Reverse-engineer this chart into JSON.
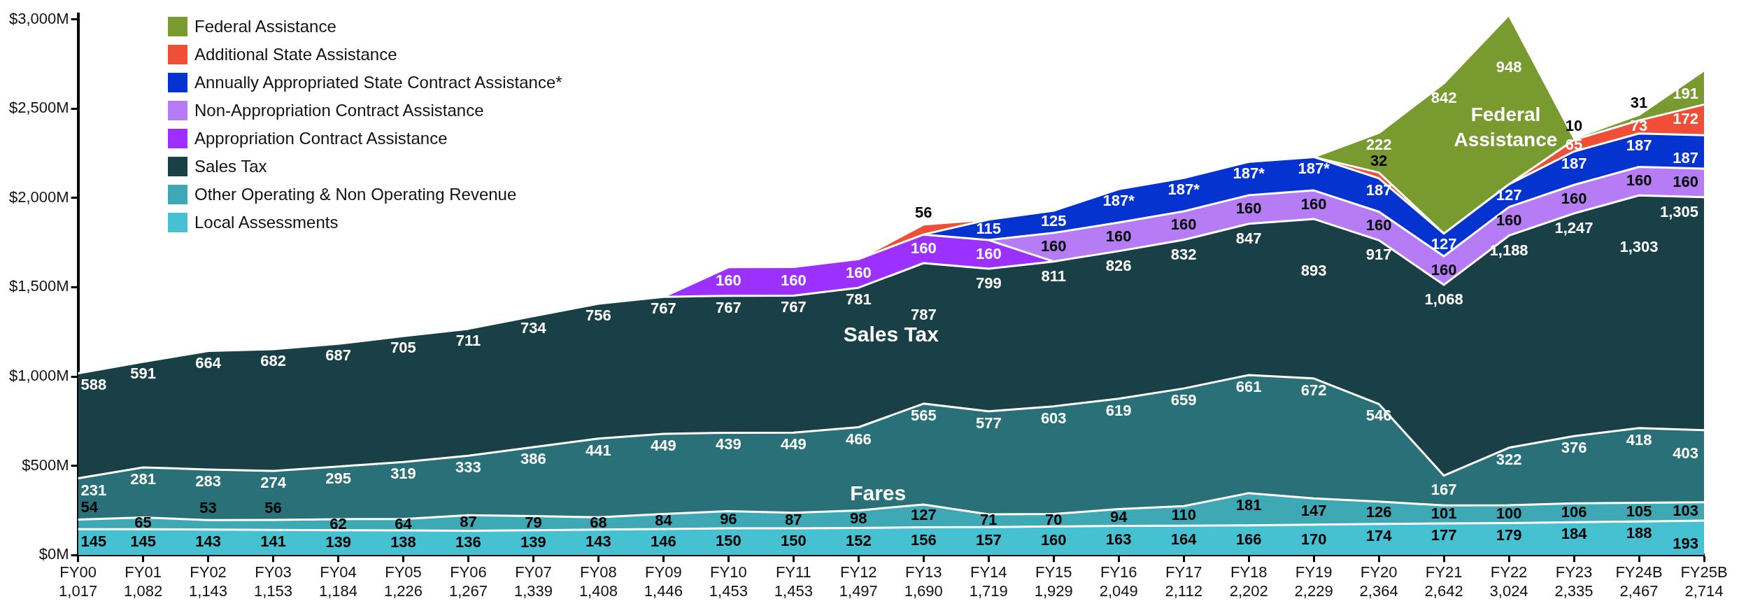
{
  "chart_data": {
    "type": "area",
    "stacked": true,
    "categories": [
      "FY00\n1,017",
      "FY01\n1,082",
      "FY02\n1,143",
      "FY03\n1,153",
      "FY04\n1,184",
      "FY05\n1,226",
      "FY06\n1,267",
      "FY07\n1,339",
      "FY08\n1,408",
      "FY09\n1,446",
      "FY10\n1,453",
      "FY11\n1,453",
      "FY12\n1,497",
      "FY13\n1,690",
      "FY14\n1,719",
      "FY15\n1,929",
      "FY16\n2,049",
      "FY17\n2,112",
      "FY18\n2,202",
      "FY19\n2,229",
      "FY20\n2,364",
      "FY21\n2,642",
      "FY22\n3,024",
      "FY23\n2,335",
      "FY24B\n2,467",
      "FY25B\n2,714"
    ],
    "ylim": [
      0,
      3030
    ],
    "yticks": [
      {
        "value": 0,
        "label": "$0M"
      },
      {
        "value": 500,
        "label": "$500M"
      },
      {
        "value": 1000,
        "label": "$1,000M"
      },
      {
        "value": 1500,
        "label": "$1,500M"
      },
      {
        "value": 2000,
        "label": "$2,000M"
      },
      {
        "value": 2500,
        "label": "$2,500M"
      },
      {
        "value": 3000,
        "label": "$3,000M"
      }
    ],
    "grid": false,
    "legend": "top left",
    "series": [
      {
        "name": "Local Assessments",
        "color": "#45c1d2",
        "values": [
          145,
          145,
          143,
          141,
          139,
          138,
          136,
          139,
          143,
          146,
          150,
          150,
          152,
          156,
          157,
          160,
          163,
          164,
          166,
          170,
          174,
          177,
          179,
          184,
          188,
          193
        ],
        "value_labels": [
          "145",
          "145",
          "143",
          "141",
          "139",
          "138",
          "136",
          "139",
          "143",
          "146",
          "150",
          "150",
          "152",
          "156",
          "157",
          "160",
          "163",
          "164",
          "166",
          "170",
          "174",
          "177",
          "179",
          "184",
          "188",
          "193"
        ]
      },
      {
        "name": "Other Operating & Non Operating Revenue",
        "color": "#3ea8b4",
        "values": [
          54,
          65,
          53,
          56,
          62,
          64,
          87,
          79,
          68,
          84,
          96,
          87,
          98,
          127,
          71,
          70,
          94,
          110,
          181,
          147,
          126,
          101,
          100,
          106,
          105,
          103
        ],
        "value_labels": [
          "54",
          "65",
          "53",
          "56",
          "62",
          "64",
          "87",
          "79",
          "68",
          "84",
          "96",
          "87",
          "98",
          "127",
          "71",
          "70",
          "94",
          "110",
          "181",
          "147",
          "126",
          "101",
          "100",
          "106",
          "105",
          "103"
        ]
      },
      {
        "color": "#2a7079",
        "values": [
          231,
          281,
          283,
          274,
          295,
          319,
          333,
          386,
          441,
          449,
          439,
          449,
          466,
          565,
          577,
          603,
          619,
          659,
          661,
          672,
          546,
          167,
          322,
          376,
          418,
          403
        ],
        "value_labels": [
          "231",
          "281",
          "283",
          "274",
          "295",
          "319",
          "333",
          "386",
          "441",
          "449",
          "439",
          "449",
          "466",
          "565",
          "577",
          "603",
          "619",
          "659",
          "661",
          "672",
          "546",
          "167",
          "322",
          "376",
          "418",
          "403"
        ]
      },
      {
        "name": "Sales Tax",
        "color": "#194046",
        "values": [
          588,
          591,
          664,
          682,
          687,
          705,
          711,
          734,
          756,
          767,
          767,
          767,
          781,
          787,
          799,
          811,
          826,
          832,
          847,
          893,
          917,
          1068,
          1188,
          1247,
          1303,
          1305
        ],
        "value_labels": [
          "588",
          "591",
          "664",
          "682",
          "687",
          "705",
          "711",
          "734",
          "756",
          "767",
          "767",
          "767",
          "781",
          "787",
          "799",
          "811",
          "826",
          "832",
          "847",
          "893",
          "917",
          "1,068",
          "1,188",
          "1,247",
          "1,303",
          "1,305"
        ]
      },
      {
        "name": "Appropriation Contract Assistance",
        "color": "#9b30ff",
        "values": [
          null,
          null,
          null,
          null,
          null,
          null,
          null,
          null,
          null,
          0,
          160,
          160,
          160,
          160,
          160,
          0,
          null,
          null,
          null,
          null,
          null,
          null,
          null,
          null,
          null,
          null
        ],
        "value_labels": [
          null,
          null,
          null,
          null,
          null,
          null,
          null,
          null,
          null,
          null,
          "160",
          "160",
          "160",
          "160",
          "160",
          null,
          null,
          null,
          null,
          null,
          null,
          null,
          null,
          null,
          null,
          null
        ]
      },
      {
        "name": "Non-Appropriation Contract Assistance",
        "color": "#b57cf5",
        "values": [
          null,
          null,
          null,
          null,
          null,
          null,
          null,
          null,
          null,
          null,
          null,
          null,
          null,
          null,
          0,
          160,
          160,
          160,
          160,
          160,
          160,
          160,
          160,
          160,
          160,
          160
        ],
        "value_labels": [
          null,
          null,
          null,
          null,
          null,
          null,
          null,
          null,
          null,
          null,
          null,
          null,
          null,
          null,
          null,
          "160",
          "160",
          "160",
          "160",
          "160",
          "160",
          "160",
          "160",
          "160",
          "160",
          "160"
        ]
      },
      {
        "name": "Annually Appropriated State Contract Assistance*",
        "color": "#0433d0",
        "values": [
          null,
          null,
          null,
          null,
          null,
          null,
          null,
          null,
          null,
          null,
          null,
          null,
          null,
          0,
          115,
          125,
          187,
          187,
          187,
          187,
          187,
          127,
          127,
          187,
          187,
          187
        ],
        "value_labels": [
          null,
          null,
          null,
          null,
          null,
          null,
          null,
          null,
          null,
          null,
          null,
          null,
          null,
          null,
          "115",
          "125",
          "187*",
          "187*",
          "187*",
          "187*",
          "187",
          "127",
          "127",
          "187",
          "187",
          "187"
        ]
      },
      {
        "name": "Additional State Assistance",
        "color": "#ee4f36",
        "values": [
          null,
          null,
          null,
          null,
          null,
          null,
          null,
          null,
          null,
          null,
          null,
          null,
          0,
          56,
          0,
          null,
          null,
          null,
          null,
          0,
          32,
          0,
          0,
          65,
          73,
          172
        ],
        "value_labels": [
          null,
          null,
          null,
          null,
          null,
          null,
          null,
          null,
          null,
          null,
          null,
          null,
          null,
          "56",
          null,
          null,
          null,
          null,
          null,
          null,
          "32",
          null,
          null,
          "65",
          "73",
          "172"
        ]
      },
      {
        "name": "Federal Assistance",
        "color": "#789a2f",
        "values": [
          null,
          null,
          null,
          null,
          null,
          null,
          null,
          null,
          null,
          null,
          null,
          null,
          null,
          null,
          null,
          null,
          null,
          null,
          null,
          0,
          222,
          842,
          948,
          10,
          31,
          191
        ],
        "value_labels": [
          null,
          null,
          null,
          null,
          null,
          null,
          null,
          null,
          null,
          null,
          null,
          null,
          null,
          null,
          null,
          null,
          null,
          null,
          null,
          null,
          "222",
          "842",
          "948",
          "10",
          "31",
          "191"
        ]
      }
    ],
    "annotations": [
      "Sales Tax",
      "Fares",
      "Federal\nAssistance"
    ]
  }
}
